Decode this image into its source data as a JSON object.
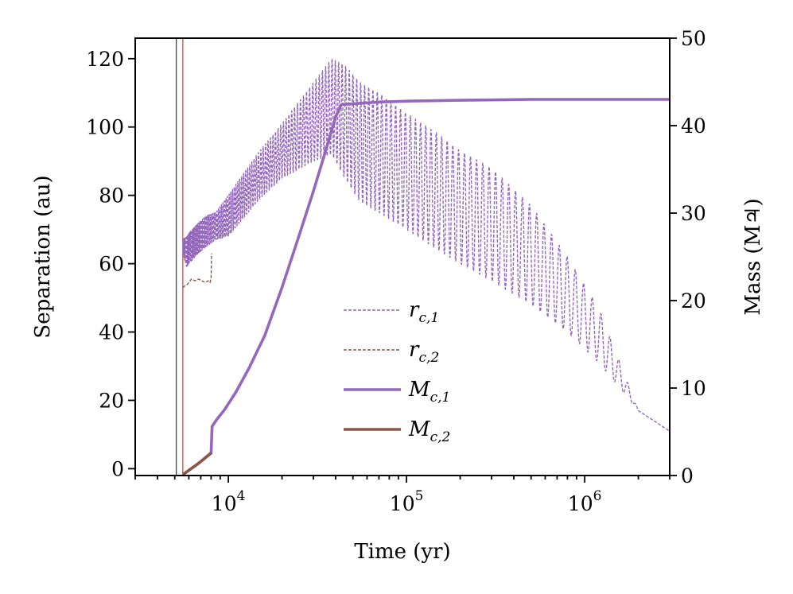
{
  "chart_data": {
    "type": "line",
    "xlabel": "Time (yr)",
    "ylabel_left": "Separation (au)",
    "ylabel_right": "Mass (M♃)",
    "xscale": "log",
    "xlim": [
      3000,
      3000000
    ],
    "ylim_left": [
      -2,
      126
    ],
    "ylim_right": [
      0,
      50
    ],
    "x_tick_labels": [
      {
        "base": "10",
        "exp": "4",
        "value": 10000
      },
      {
        "base": "10",
        "exp": "5",
        "value": 100000
      },
      {
        "base": "10",
        "exp": "6",
        "value": 1000000
      }
    ],
    "y_left_ticks": [
      "0",
      "20",
      "40",
      "60",
      "80",
      "100",
      "120"
    ],
    "y_right_ticks": [
      "0",
      "10",
      "20",
      "30",
      "40",
      "50"
    ],
    "vertical_lines": [
      {
        "x": 5100,
        "color": "#444444"
      },
      {
        "x": 5550,
        "color": "#e8413a"
      }
    ],
    "legend": {
      "position": "center-bottom",
      "entries": [
        {
          "main": "r",
          "sub": "c,1",
          "color": "#9467bd",
          "style": "dashed"
        },
        {
          "main": "r",
          "sub": "c,2",
          "color": "#8c564b",
          "style": "dashed"
        },
        {
          "main": "M",
          "sub": "c,1",
          "color": "#9467bd",
          "style": "solid"
        },
        {
          "main": "M",
          "sub": "c,2",
          "color": "#8c564b",
          "style": "solid"
        }
      ]
    },
    "series": [
      {
        "name": "r_c,1",
        "axis": "left",
        "color": "#9467bd",
        "style": "dashed",
        "oscillating": true,
        "x": [
          5550,
          5800,
          6500,
          7500,
          8500,
          10000,
          12000,
          15000,
          20000,
          30000,
          38000,
          45000,
          55000,
          70000,
          100000,
          150000,
          200000,
          300000,
          500000,
          800000,
          1200000,
          2000000,
          3000000
        ],
        "upper": [
          67,
          68,
          71,
          74,
          75,
          80,
          86,
          93,
          101,
          113,
          120,
          118,
          113,
          110,
          104,
          98,
          93,
          88,
          77,
          62,
          47,
          17,
          11
        ],
        "lower": [
          63,
          59,
          62,
          65,
          67,
          68,
          73,
          79,
          85,
          90,
          92,
          85,
          78,
          75,
          70,
          64,
          60,
          55,
          48,
          40,
          31,
          17,
          11
        ],
        "periods": [
          0.004,
          0.005,
          0.006,
          0.007,
          0.008,
          0.009,
          0.011,
          0.013,
          0.015,
          0.018,
          0.018,
          0.02,
          0.022,
          0.025,
          0.028,
          0.03,
          0.033,
          0.036,
          0.04,
          0.045,
          0.05,
          0.05,
          0.05
        ]
      },
      {
        "name": "r_c,2",
        "axis": "left",
        "color": "#8c564b",
        "style": "dashed",
        "x": [
          5550,
          5700,
          5900,
          6200,
          6500,
          6800,
          7100,
          7400,
          7700,
          7900,
          8000,
          8050
        ],
        "y": [
          53,
          53.5,
          54,
          55.5,
          55,
          55.5,
          55,
          54.5,
          55,
          54.5,
          56,
          63
        ]
      },
      {
        "name": "M_c,1",
        "axis": "right",
        "color": "#9467bd",
        "style": "solid",
        "x": [
          5550,
          6000,
          6500,
          7000,
          7600,
          8000,
          8100,
          8600,
          9500,
          11000,
          13000,
          16000,
          20000,
          25000,
          30000,
          35000,
          40000,
          43000,
          50000,
          70000,
          100000,
          200000,
          500000,
          1000000,
          2000000,
          3000000
        ],
        "y": [
          0.1,
          0.6,
          1.1,
          1.6,
          2.2,
          2.6,
          5.6,
          6.4,
          7.5,
          9.5,
          12.2,
          16.0,
          21.5,
          27.5,
          32.5,
          37.0,
          41.0,
          42.4,
          42.5,
          42.7,
          42.8,
          42.9,
          43.0,
          43.0,
          43.0,
          43.0
        ]
      },
      {
        "name": "M_c,2",
        "axis": "right",
        "color": "#8c564b",
        "style": "solid",
        "x": [
          5550,
          6000,
          6500,
          7000,
          7600,
          8050
        ],
        "y": [
          0.1,
          0.6,
          1.1,
          1.6,
          2.2,
          2.6
        ]
      }
    ]
  }
}
